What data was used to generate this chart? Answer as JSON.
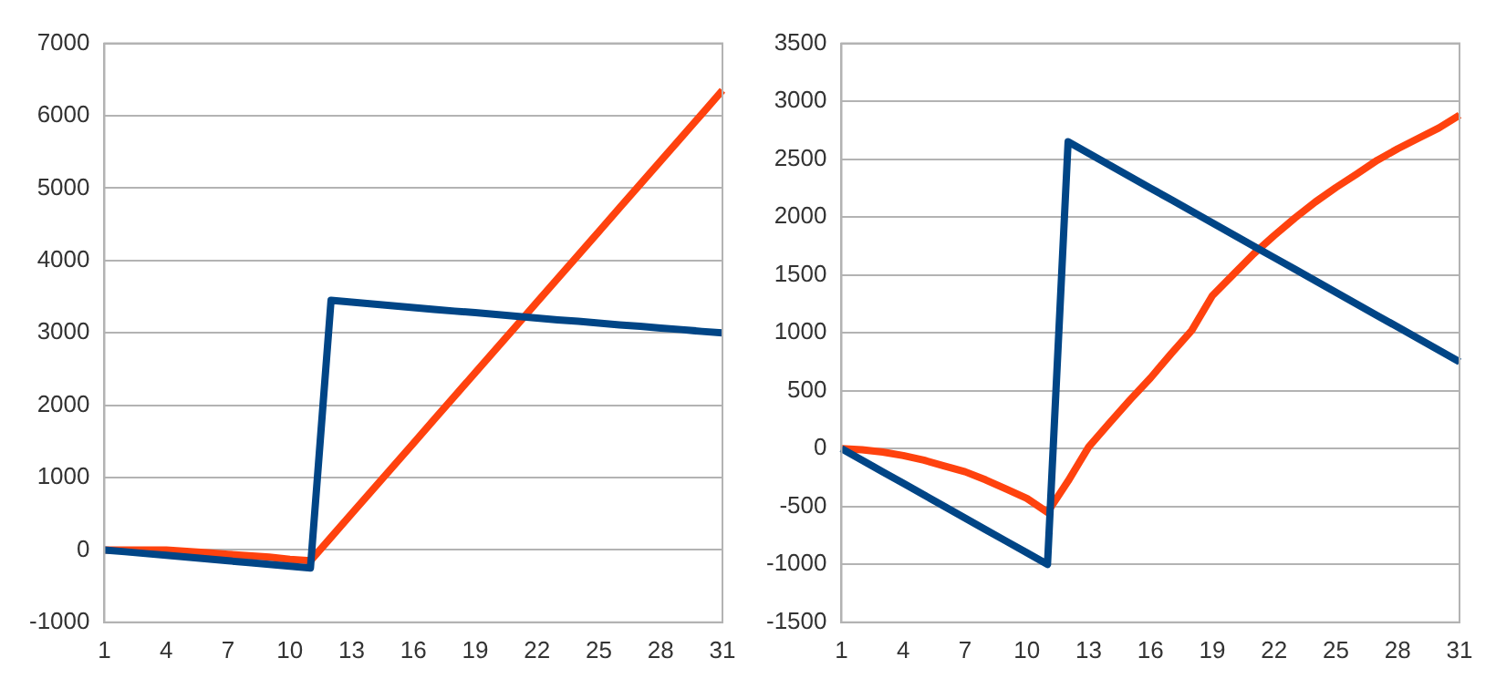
{
  "chart_data": [
    {
      "type": "line",
      "categories": [
        "1",
        null,
        null,
        "4",
        null,
        null,
        "7",
        null,
        null,
        "10",
        null,
        null,
        "13",
        null,
        null,
        "16",
        null,
        null,
        "19",
        null,
        null,
        "22",
        null,
        null,
        "25",
        null,
        null,
        "28",
        null,
        null,
        "31"
      ],
      "series": [
        {
          "color": "#004586",
          "values": [
            0,
            -25,
            -50,
            -75,
            -100,
            -125,
            -150,
            -175,
            -200,
            -225,
            -250,
            3450,
            3425,
            3400,
            3375,
            3350,
            3325,
            3300,
            3280,
            3255,
            3230,
            3205,
            3180,
            3160,
            3135,
            3110,
            3090,
            3065,
            3045,
            3020,
            3000
          ]
        },
        {
          "color": "#ff420e",
          "values": [
            0,
            0,
            0,
            0,
            -20,
            -40,
            -60,
            -80,
            -100,
            -130,
            -150,
            175,
            500,
            825,
            1150,
            1475,
            1800,
            2125,
            2450,
            2775,
            3100,
            3425,
            3750,
            4075,
            4400,
            4725,
            5050,
            5375,
            5700,
            6025,
            6350
          ]
        }
      ],
      "ylim": [
        -1000,
        7000
      ],
      "yticks": [
        -1000,
        0,
        1000,
        2000,
        3000,
        4000,
        5000,
        6000,
        7000
      ],
      "grid": "y",
      "legend": false,
      "marker": "none",
      "line_style": "solid"
    },
    {
      "type": "line",
      "categories": [
        "1",
        null,
        null,
        "4",
        null,
        null,
        "7",
        null,
        null,
        "10",
        null,
        null,
        "13",
        null,
        null,
        "16",
        null,
        null,
        "19",
        null,
        null,
        "22",
        null,
        null,
        "25",
        null,
        null,
        "28",
        null,
        null,
        "31"
      ],
      "series": [
        {
          "color": "#004586",
          "values": [
            0,
            -100,
            -200,
            -300,
            -400,
            -500,
            -600,
            -700,
            -800,
            -900,
            -1000,
            2650,
            2550,
            2450,
            2350,
            2250,
            2150,
            2050,
            1950,
            1850,
            1750,
            1650,
            1550,
            1450,
            1350,
            1250,
            1150,
            1050,
            950,
            850,
            750
          ]
        },
        {
          "color": "#ff420e",
          "values": [
            0,
            -10,
            -30,
            -60,
            -100,
            -150,
            -200,
            -270,
            -350,
            -430,
            -550,
            -280,
            15,
            220,
            420,
            610,
            820,
            1020,
            1320,
            1500,
            1680,
            1840,
            1990,
            2130,
            2255,
            2370,
            2490,
            2590,
            2680,
            2770,
            2880
          ]
        }
      ],
      "ylim": [
        -1500,
        3500
      ],
      "yticks": [
        -1500,
        -1000,
        -500,
        0,
        500,
        1000,
        1500,
        2000,
        2500,
        3000,
        3500
      ],
      "grid": "y",
      "legend": false,
      "marker": "none",
      "line_style": "solid"
    }
  ]
}
